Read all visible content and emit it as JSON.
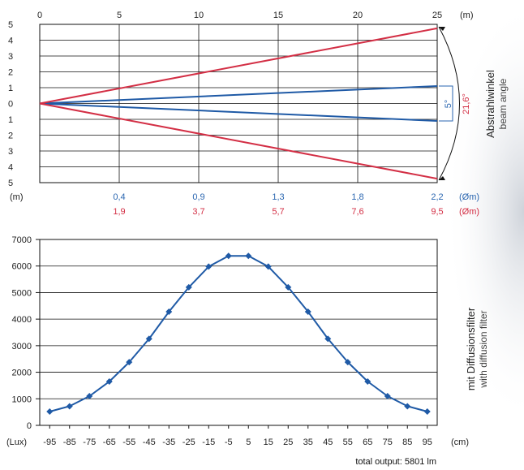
{
  "chart_data": [
    {
      "type": "line",
      "x_ticks": [
        "0",
        "5",
        "10",
        "15",
        "20",
        "25"
      ],
      "x_unit": "(m)",
      "y_ticks": [
        "5",
        "4",
        "3",
        "2",
        "1",
        "0",
        "1",
        "2",
        "3",
        "4",
        "5"
      ],
      "y_unit": "(m)",
      "xlim": [
        0,
        25
      ],
      "ylim": [
        -5,
        5
      ],
      "grid": true,
      "series": [
        {
          "color": "#1f5aa6",
          "points": [
            [
              0,
              0
            ],
            [
              25,
              1.1
            ]
          ]
        },
        {
          "color": "#1f5aa6",
          "points": [
            [
              0,
              0
            ],
            [
              25,
              -1.1
            ]
          ]
        },
        {
          "color": "#d32f45",
          "points": [
            [
              0,
              0
            ],
            [
              25,
              4.75
            ]
          ]
        },
        {
          "color": "#d32f45",
          "points": [
            [
              0,
              0
            ],
            [
              25,
              -4.75
            ]
          ]
        }
      ],
      "beam_angle_labels": {
        "narrow": "5°",
        "wide": "21,6°"
      },
      "side_title": "Abstrahlwinkel",
      "side_subtitle": "beam angle",
      "diameter_rows": [
        {
          "color": "#2a66b0",
          "x": [
            5,
            10,
            15,
            20,
            25
          ],
          "values": [
            "0,4",
            "0,9",
            "1,3",
            "1,8",
            "2,2"
          ],
          "unit": "(Øm)"
        },
        {
          "color": "#d32f45",
          "x": [
            5,
            10,
            15,
            20,
            25
          ],
          "values": [
            "1,9",
            "3,7",
            "5,7",
            "7,6",
            "9,5"
          ],
          "unit": "(Øm)"
        }
      ]
    },
    {
      "type": "line",
      "x": [
        -95,
        -85,
        -75,
        -65,
        -55,
        -45,
        -35,
        -25,
        -15,
        -5,
        5,
        15,
        25,
        35,
        45,
        55,
        65,
        75,
        85,
        95
      ],
      "y": [
        520,
        720,
        1100,
        1650,
        2380,
        3260,
        4280,
        5200,
        5980,
        6380,
        6380,
        5980,
        5200,
        4280,
        3260,
        2380,
        1650,
        1100,
        720,
        520
      ],
      "x_tick_labels": [
        "-95",
        "-85",
        "-75",
        "-65",
        "-55",
        "-45",
        "-35",
        "-25",
        "-15",
        "-5",
        "5",
        "15",
        "25",
        "35",
        "45",
        "55",
        "65",
        "75",
        "85",
        "95"
      ],
      "y_ticks": [
        0,
        1000,
        2000,
        3000,
        4000,
        5000,
        6000,
        7000
      ],
      "ylim": [
        0,
        7000
      ],
      "xlim": [
        -100,
        100
      ],
      "y_unit": "(Lux)",
      "x_unit": "(cm)",
      "grid": true,
      "series_color": "#1f5aa6",
      "side_title": "mit Diffusionsfilter",
      "side_subtitle": "with diffusion filter",
      "footer": "total output: 5801 lm"
    }
  ]
}
